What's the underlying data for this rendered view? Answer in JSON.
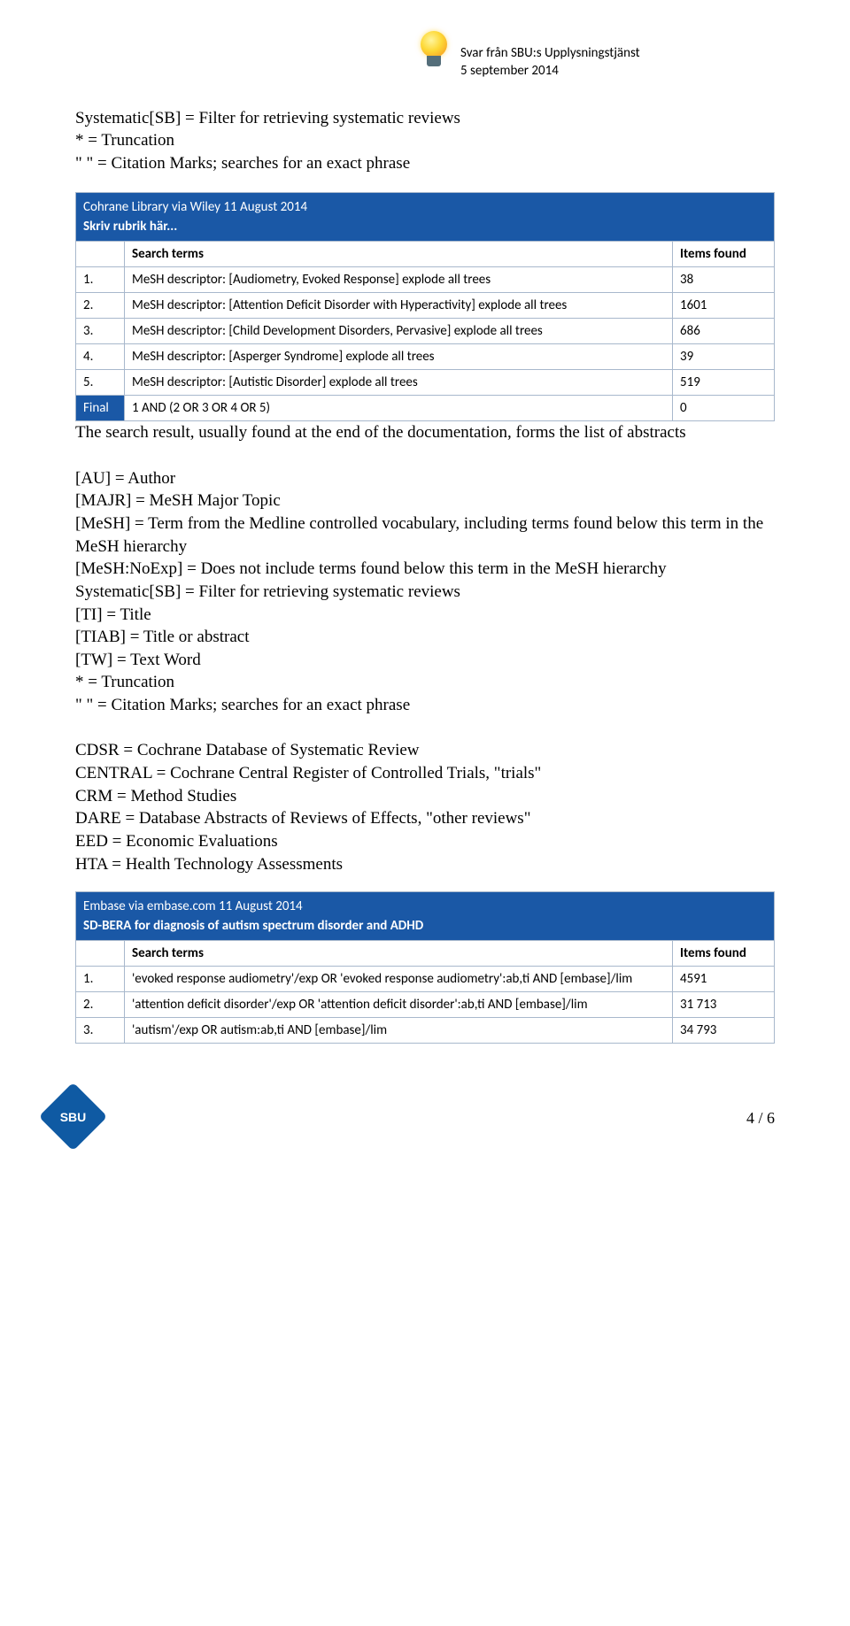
{
  "header": {
    "line1": "Svar från SBU:s Upplysningstjänst",
    "line2": "5 september 2014"
  },
  "intro": {
    "line1": "Systematic[SB] = Filter for retrieving systematic reviews",
    "line2": "* = Truncation",
    "line3": "\" \" = Citation Marks; searches for an exact phrase"
  },
  "table1": {
    "title": "Cohrane Library via Wiley 11 August 2014",
    "subtitle": "Skriv rubrik här...",
    "col_terms": "Search terms",
    "col_items": "Items found",
    "rows": [
      {
        "n": "1.",
        "term": "MeSH descriptor: [Audiometry, Evoked Response] explode all trees",
        "items": "38"
      },
      {
        "n": "2.",
        "term": "MeSH descriptor: [Attention Deficit Disorder with Hyperactivity] explode all trees",
        "items": "1601"
      },
      {
        "n": "3.",
        "term": "MeSH descriptor: [Child Development Disorders, Pervasive] explode all trees",
        "items": "686"
      },
      {
        "n": "4.",
        "term": "MeSH descriptor: [Asperger Syndrome] explode all trees",
        "items": "39"
      },
      {
        "n": "5.",
        "term": "MeSH descriptor: [Autistic Disorder] explode all trees",
        "items": "519"
      }
    ],
    "final_label": "Final",
    "final_term": "1 AND (2 OR 3 OR 4 OR 5)",
    "final_items": "0"
  },
  "midtext": {
    "p1": "The search result, usually found at the end of the documentation, forms the list of abstracts",
    "defs": [
      "[AU] = Author",
      "[MAJR] = MeSH Major Topic",
      "[MeSH] = Term from the Medline controlled vocabulary, including terms found below this term in the MeSH hierarchy",
      "[MeSH:NoExp] = Does not include terms found below this term in the MeSH hierarchy",
      "Systematic[SB] = Filter for retrieving systematic reviews",
      "[TI] = Title",
      "[TIAB] = Title or abstract",
      "[TW] = Text Word",
      "* = Truncation",
      "\" \" = Citation Marks; searches for an exact phrase"
    ],
    "defs2": [
      "CDSR = Cochrane Database of Systematic Review",
      "CENTRAL = Cochrane Central Register of Controlled Trials, \"trials\"",
      "CRM = Method Studies",
      "DARE = Database Abstracts of Reviews of Effects, \"other reviews\"",
      "EED = Economic Evaluations",
      "HTA = Health Technology Assessments"
    ]
  },
  "table2": {
    "title": "Embase via embase.com 11 August 2014",
    "subtitle": "SD-BERA for diagnosis of autism spectrum disorder and ADHD",
    "col_terms": "Search terms",
    "col_items": "Items found",
    "rows": [
      {
        "n": "1.",
        "term": "'evoked response audiometry'/exp OR 'evoked response audiometry':ab,ti AND [embase]/lim",
        "items": "4591"
      },
      {
        "n": "2.",
        "term": "'attention deficit disorder'/exp OR 'attention deficit disorder':ab,ti AND [embase]/lim",
        "items": "31 713"
      },
      {
        "n": "3.",
        "term": "'autism'/exp OR autism:ab,ti AND [embase]/lim",
        "items": "34 793"
      }
    ]
  },
  "footer": {
    "logo_text": "SBU",
    "page": "4 / 6"
  }
}
